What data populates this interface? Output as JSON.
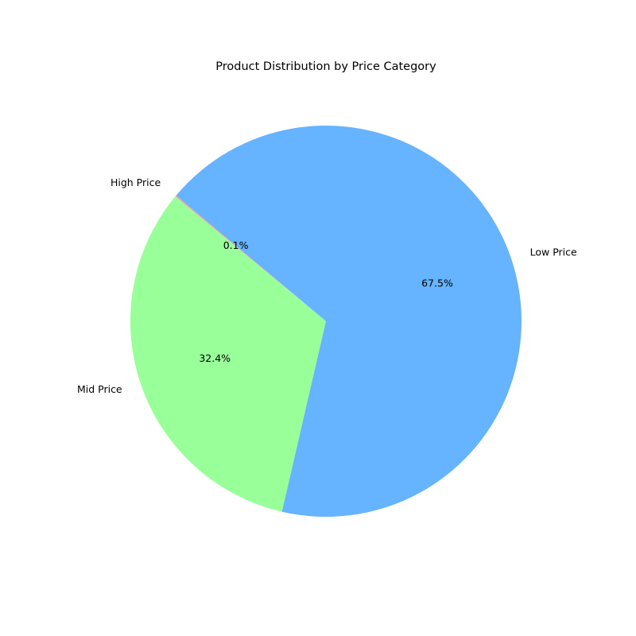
{
  "chart_data": {
    "type": "pie",
    "title": "Product Distribution by Price Category",
    "slices": [
      {
        "label": "High Price",
        "value": 0.1,
        "pct_label": "0.1%",
        "color": "#ff9999"
      },
      {
        "label": "Mid Price",
        "value": 32.4,
        "pct_label": "32.4%",
        "color": "#99ff99"
      },
      {
        "label": "Low Price",
        "value": 67.5,
        "pct_label": "67.5%",
        "color": "#66b3ff"
      }
    ],
    "start_angle_deg": 140,
    "direction": "counterclockwise"
  }
}
